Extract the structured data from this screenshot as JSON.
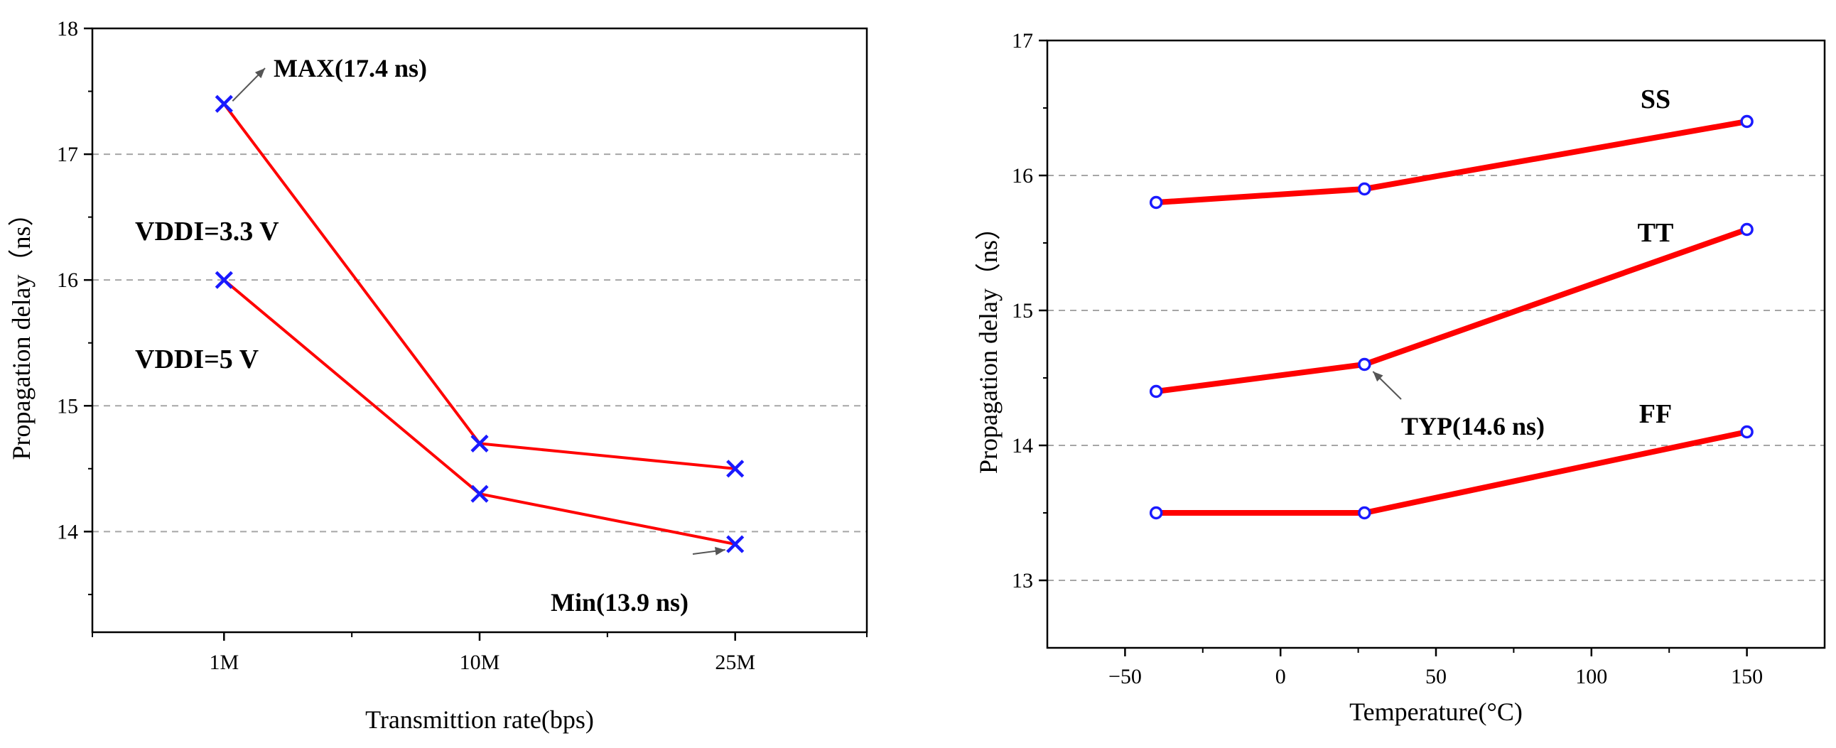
{
  "chart_data": [
    {
      "type": "line",
      "xlabel": "Transmittion rate(bps)",
      "ylabel": "Propagation delay（ns）",
      "categories": [
        "1M",
        "10M",
        "25M"
      ],
      "ylim": [
        13.2,
        18
      ],
      "yticks": [
        14,
        15,
        16,
        17,
        18
      ],
      "grid": "horizontal dashed",
      "series": [
        {
          "name": "VDDI=3.3 V",
          "values": [
            17.4,
            14.7,
            14.5
          ],
          "color": "#ff0000",
          "marker": "x",
          "marker_color": "#1a1aff"
        },
        {
          "name": "VDDI=5 V",
          "values": [
            16.0,
            14.3,
            13.9
          ],
          "color": "#ff0000",
          "marker": "x",
          "marker_color": "#1a1aff"
        }
      ],
      "annotations": [
        {
          "text": "MAX(17.4 ns)",
          "target": {
            "category": "1M",
            "value": 17.4
          }
        },
        {
          "text": "Min(13.9 ns)",
          "target": {
            "category": "25M",
            "value": 13.9
          }
        }
      ]
    },
    {
      "type": "line",
      "xlabel": "Temperature(°C)",
      "ylabel": "Propagation delay（ns）",
      "xlim": [
        -75,
        175
      ],
      "xticks": [
        -50,
        0,
        50,
        100,
        150
      ],
      "xtick_labels": [
        "−50",
        "0",
        "50",
        "100",
        "150"
      ],
      "ylim": [
        12.5,
        17
      ],
      "yticks": [
        13,
        14,
        15,
        16,
        17
      ],
      "grid": "horizontal dashed",
      "series": [
        {
          "name": "SS",
          "x": [
            -40,
            27,
            150
          ],
          "values": [
            15.8,
            15.9,
            16.4
          ],
          "color": "#ff0000",
          "marker": "o",
          "marker_color": "#1a1aff"
        },
        {
          "name": "TT",
          "x": [
            -40,
            27,
            150
          ],
          "values": [
            14.4,
            14.6,
            15.6
          ],
          "color": "#ff0000",
          "marker": "o",
          "marker_color": "#1a1aff"
        },
        {
          "name": "FF",
          "x": [
            -40,
            27,
            150
          ],
          "values": [
            13.5,
            13.5,
            14.1
          ],
          "color": "#ff0000",
          "marker": "o",
          "marker_color": "#1a1aff"
        }
      ],
      "annotations": [
        {
          "text": "TYP(14.6 ns)",
          "target": {
            "x": 27,
            "value": 14.6
          }
        }
      ]
    }
  ]
}
